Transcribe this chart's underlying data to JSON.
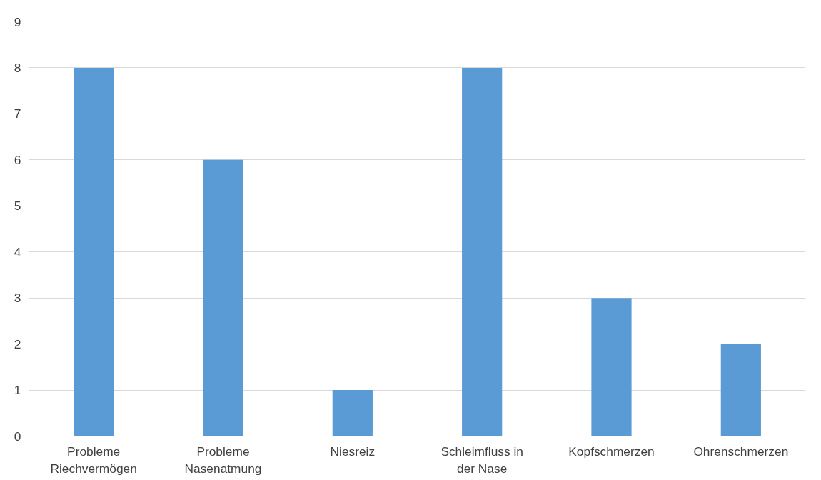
{
  "chart_data": {
    "type": "bar",
    "categories": [
      "Probleme\nRiechvermögen",
      "Probleme\nNasenatmung",
      "Niesreiz",
      "Schleimfluss in\nder Nase",
      "Kopfschmerzen",
      "Ohrenschmerzen"
    ],
    "values": [
      8,
      6,
      1,
      8,
      3,
      2
    ],
    "color": "#5b9bd5",
    "ylim": [
      0,
      9
    ],
    "yticks": [
      0,
      1,
      2,
      3,
      4,
      5,
      6,
      7,
      8,
      9
    ],
    "grid": "y"
  }
}
